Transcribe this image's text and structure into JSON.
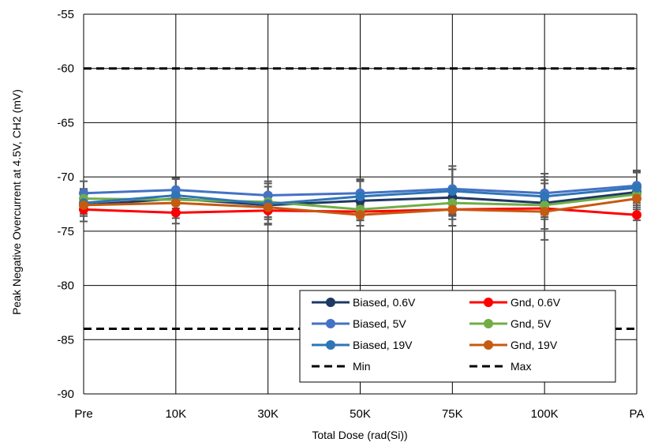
{
  "chart_data": {
    "type": "line",
    "xlabel": "Total Dose (rad(Si))",
    "ylabel": "Peak Negative Overcurrent at 4.5V, CH2 (mV)",
    "categories": [
      "Pre",
      "10K",
      "30K",
      "50K",
      "75K",
      "100K",
      "PA"
    ],
    "ylim": [
      -90,
      -55
    ],
    "yticks": [
      -55,
      -60,
      -65,
      -70,
      -75,
      -80,
      -85,
      -90
    ],
    "grid": true,
    "legend_position": "bottom-right",
    "series": [
      {
        "name": "Biased, 0.6V",
        "color": "#1f3864",
        "values": [
          -72.6,
          -72.0,
          -72.6,
          -72.2,
          -71.9,
          -72.4,
          -71.4
        ],
        "err": [
          1.5,
          1.8,
          1.7,
          1.8,
          2.6,
          2.4,
          1.9
        ]
      },
      {
        "name": "Gnd, 0.6V",
        "color": "#ff0000",
        "values": [
          -73.0,
          -73.3,
          -73.1,
          -73.2,
          -73.0,
          -72.9,
          -73.5
        ],
        "err": [
          0.6,
          1.0,
          0.8,
          0.6,
          0.5,
          0.8,
          0.5
        ]
      },
      {
        "name": "Biased, 5V",
        "color": "#4472c4",
        "values": [
          -71.5,
          -71.2,
          -71.7,
          -71.5,
          -71.1,
          -71.5,
          -70.8
        ],
        "err": [
          1.1,
          1.1,
          1.3,
          1.2,
          1.8,
          1.2,
          1.2
        ]
      },
      {
        "name": "Gnd, 5V",
        "color": "#70ad47",
        "values": [
          -72.0,
          -72.1,
          -72.3,
          -73.0,
          -72.4,
          -72.6,
          -71.6
        ],
        "err": [
          0.7,
          0.8,
          0.8,
          1.0,
          1.0,
          0.9,
          0.8
        ]
      },
      {
        "name": "Biased, 19V",
        "color": "#2e75b6",
        "values": [
          -72.4,
          -71.7,
          -72.5,
          -71.8,
          -71.3,
          -71.8,
          -71.0
        ],
        "err": [
          1.2,
          1.6,
          1.9,
          1.6,
          2.3,
          2.1,
          1.6
        ]
      },
      {
        "name": "Gnd, 19V",
        "color": "#c55a11",
        "values": [
          -72.6,
          -72.4,
          -72.8,
          -73.5,
          -73.0,
          -73.2,
          -72.0
        ],
        "err": [
          0.8,
          0.9,
          0.9,
          1.0,
          0.9,
          2.6,
          0.8
        ]
      },
      {
        "name": "Min",
        "color": "#000000",
        "dashed": true,
        "constant": -60
      },
      {
        "name": "Max",
        "color": "#000000",
        "dashed": true,
        "constant": -84
      }
    ]
  }
}
